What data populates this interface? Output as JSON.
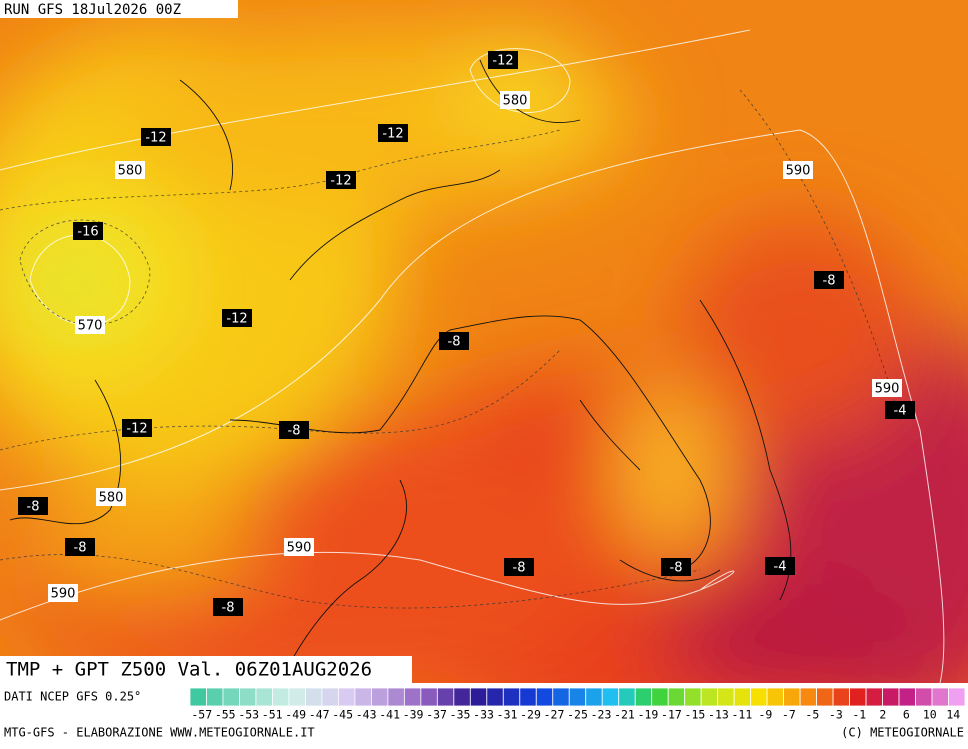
{
  "header": {
    "run": "RUN GFS 18Jul2026 00Z",
    "title": "TMP + GPT Z500 Val. 06Z01AUG2026"
  },
  "map_labels": [
    {
      "kind": "temperature",
      "value": -12
    },
    {
      "kind": "height",
      "value": 580
    },
    {
      "kind": "temperature",
      "value": -12
    },
    {
      "kind": "temperature",
      "value": -12
    },
    {
      "kind": "height",
      "value": 580
    },
    {
      "kind": "temperature",
      "value": -12
    },
    {
      "kind": "height",
      "value": 590
    },
    {
      "kind": "temperature",
      "value": -16
    },
    {
      "kind": "temperature",
      "value": -8
    },
    {
      "kind": "height",
      "value": 570
    },
    {
      "kind": "temperature",
      "value": -12
    },
    {
      "kind": "temperature",
      "value": -8
    },
    {
      "kind": "height",
      "value": 590
    },
    {
      "kind": "temperature",
      "value": -4
    },
    {
      "kind": "temperature",
      "value": -12
    },
    {
      "kind": "temperature",
      "value": -8
    },
    {
      "kind": "height",
      "value": 580
    },
    {
      "kind": "temperature",
      "value": -8
    },
    {
      "kind": "temperature",
      "value": -8
    },
    {
      "kind": "height",
      "value": 590
    },
    {
      "kind": "temperature",
      "value": -8
    },
    {
      "kind": "temperature",
      "value": -8
    },
    {
      "kind": "temperature",
      "value": -4
    },
    {
      "kind": "height",
      "value": 590
    },
    {
      "kind": "temperature",
      "value": -8
    }
  ],
  "legend": {
    "source": "DATI NCEP GFS 0.25°",
    "ticks": [
      -57,
      -55,
      -53,
      -51,
      -49,
      -47,
      -45,
      -43,
      -41,
      -39,
      -37,
      -35,
      -33,
      -31,
      -29,
      -27,
      -25,
      -23,
      -21,
      -19,
      -17,
      -15,
      -13,
      -11,
      -9,
      -7,
      -5,
      -3,
      -1,
      2,
      6,
      10,
      14
    ]
  },
  "footer": {
    "credit": "MTG-GFS - ELABORAZIONE WWW.METEOGIORNALE.IT",
    "copyright": "(C) METEOGIORNALE"
  }
}
